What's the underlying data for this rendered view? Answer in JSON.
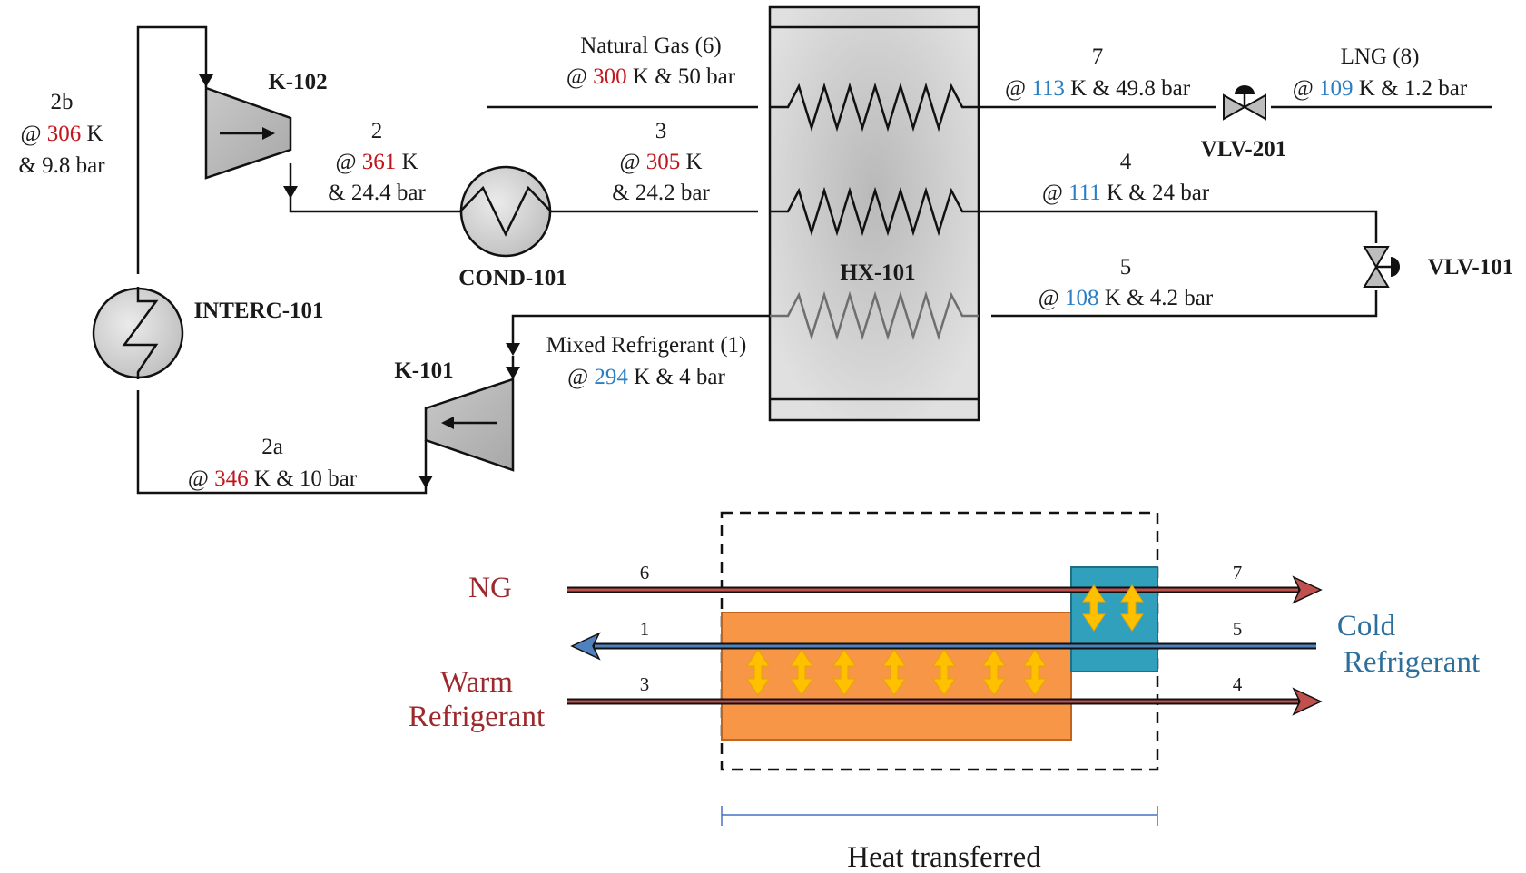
{
  "colors": {
    "hot": "#c0161d",
    "cold": "#2a7ec4",
    "ng_arrow": "#c0504d",
    "mr_arrow": "#4f81bd",
    "hot_box": "#f79646",
    "cold_box": "#31a0bd",
    "heat_arrow": "#ffc000"
  },
  "units": {
    "k102": "K-102",
    "k101": "K-101",
    "cond101": "COND-101",
    "interc101": "INTERC-101",
    "hx101": "HX-101",
    "vlv201": "VLV-201",
    "vlv101": "VLV-101"
  },
  "streams": {
    "s2b": {
      "name": "2b",
      "at": "@ ",
      "temp": "306",
      "k": " K",
      "pressure": "& 9.8 bar"
    },
    "s2": {
      "name": "2",
      "at": "@ ",
      "temp": "361",
      "k": " K",
      "pressure": "& 24.4 bar"
    },
    "s6": {
      "name": "Natural Gas (6)",
      "at": "@ ",
      "temp": "300",
      "rest": " K & 50 bar"
    },
    "s3": {
      "name": "3",
      "at": "@ ",
      "temp": "305",
      "k": " K",
      "pressure": "& 24.2 bar"
    },
    "s7": {
      "name": "7",
      "at": "@ ",
      "temp": "113",
      "rest": " K & 49.8 bar"
    },
    "s8": {
      "name": "LNG (8)",
      "at": "@ ",
      "temp": "109",
      "rest": " K & 1.2 bar"
    },
    "s4": {
      "name": "4",
      "at": "@ ",
      "temp": "111",
      "rest": " K & 24 bar"
    },
    "s5": {
      "name": "5",
      "at": "@ ",
      "temp": "108",
      "rest": " K & 4.2 bar"
    },
    "s1": {
      "name": "Mixed Refrigerant (1)",
      "at": "@ ",
      "temp": "294",
      "rest": " K & 4 bar"
    },
    "s2a": {
      "name": "2a",
      "at": "@ ",
      "temp": "346",
      "rest": " K & 10 bar"
    }
  },
  "schematic": {
    "ng": "NG",
    "warm_1": "Warm",
    "warm_2": "Refrigerant",
    "cold_1": "Cold",
    "cold_2": "Refrigerant",
    "n6": "6",
    "n7": "7",
    "n1": "1",
    "n5": "5",
    "n3": "3",
    "n4": "4",
    "heat": "Heat transferred"
  }
}
